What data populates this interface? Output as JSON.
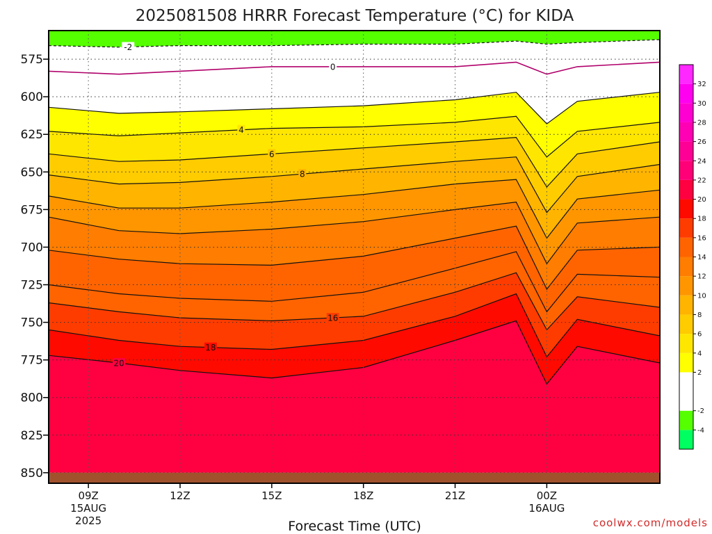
{
  "chart_data": {
    "type": "heatmap",
    "title": "2025081508 HRRR Forecast Temperature (°C) for KIDA",
    "xlabel": "Forecast Time (UTC)",
    "ylabel": "",
    "credit": "coolwx.com/models",
    "x_domain_hours": [
      7.7,
      27.7
    ],
    "y_domain_hpa": [
      556,
      857
    ],
    "y_scale": "linear, pressure increasing downward",
    "y_ticks": [
      575,
      600,
      625,
      650,
      675,
      700,
      725,
      750,
      775,
      800,
      825,
      850
    ],
    "x_ticks": [
      {
        "hour": 9,
        "label": "09Z",
        "sub1": "15AUG",
        "sub2": "2025"
      },
      {
        "hour": 12,
        "label": "12Z",
        "sub1": "",
        "sub2": ""
      },
      {
        "hour": 15,
        "label": "15Z",
        "sub1": "",
        "sub2": ""
      },
      {
        "hour": 18,
        "label": "18Z",
        "sub1": "",
        "sub2": ""
      },
      {
        "hour": 21,
        "label": "21Z",
        "sub1": "",
        "sub2": ""
      },
      {
        "hour": 24,
        "label": "00Z",
        "sub1": "16AUG",
        "sub2": ""
      }
    ],
    "grid": true,
    "ground_surface_hpa": 850,
    "isotherm_hours": [
      7.7,
      10,
      12,
      15,
      18,
      21,
      23,
      24,
      25,
      27.7
    ],
    "isotherms": [
      {
        "t": -2,
        "p": [
          566,
          567,
          566,
          566,
          565,
          565,
          563,
          565,
          564,
          562
        ],
        "label": "-2",
        "label_hour": 10.3
      },
      {
        "t": 0,
        "p": [
          583,
          585,
          583,
          580,
          580,
          580,
          577,
          585,
          580,
          577
        ],
        "label": "0",
        "label_hour": 17.0
      },
      {
        "t": 2,
        "p": [
          607,
          611,
          610,
          608,
          606,
          602,
          597,
          618,
          603,
          597
        ],
        "label": "",
        "label_hour": 0
      },
      {
        "t": 4,
        "p": [
          623,
          626,
          624,
          621,
          620,
          617,
          613,
          640,
          623,
          617
        ],
        "label": "4",
        "label_hour": 14.0
      },
      {
        "t": 6,
        "p": [
          638,
          643,
          642,
          638,
          634,
          630,
          627,
          660,
          638,
          630
        ],
        "label": "6",
        "label_hour": 15.0
      },
      {
        "t": 8,
        "p": [
          652,
          658,
          657,
          653,
          648,
          643,
          640,
          677,
          653,
          645
        ],
        "label": "8",
        "label_hour": 16.0
      },
      {
        "t": 10,
        "p": [
          666,
          674,
          674,
          670,
          665,
          658,
          655,
          694,
          668,
          662
        ],
        "label": "",
        "label_hour": 0
      },
      {
        "t": 12,
        "p": [
          680,
          689,
          691,
          688,
          683,
          675,
          670,
          711,
          684,
          680
        ],
        "label": "",
        "label_hour": 0
      },
      {
        "t": 14,
        "p": [
          702,
          708,
          711,
          712,
          706,
          694,
          686,
          728,
          702,
          700
        ],
        "label": "",
        "label_hour": 0
      },
      {
        "t": 15,
        "p": [
          725,
          731,
          734,
          736,
          730,
          714,
          703,
          743,
          718,
          720
        ],
        "label": "",
        "label_hour": 0
      },
      {
        "t": 16,
        "p": [
          737,
          743,
          747,
          749,
          746,
          730,
          717,
          755,
          733,
          740
        ],
        "label": "16",
        "label_hour": 17.0
      },
      {
        "t": 18,
        "p": [
          755,
          762,
          766,
          768,
          762,
          746,
          731,
          773,
          748,
          759
        ],
        "label": "18",
        "label_hour": 13.0
      },
      {
        "t": 20,
        "p": [
          772,
          777,
          782,
          787,
          780,
          762,
          749,
          791,
          766,
          777
        ],
        "label": "20",
        "label_hour": 10.0
      }
    ],
    "colorbar": {
      "levels": [
        -6,
        -4,
        -2,
        0,
        2,
        4,
        6,
        8,
        10,
        12,
        14,
        16,
        18,
        20,
        22,
        24,
        26,
        28,
        30,
        32,
        34
      ],
      "tick_labels": [
        "-4",
        "-2",
        "2",
        "4",
        "6",
        "8",
        "10",
        "12",
        "14",
        "16",
        "18",
        "20",
        "22",
        "24",
        "26",
        "28",
        "30",
        "32"
      ],
      "tick_values": [
        -4,
        -2,
        2,
        4,
        6,
        8,
        10,
        12,
        14,
        16,
        18,
        20,
        22,
        24,
        26,
        28,
        30,
        32
      ],
      "colors": [
        "#00ff60",
        "#55ff00",
        "#ffffff",
        "#ffffff",
        "#ffff00",
        "#ffe600",
        "#ffcc00",
        "#ffb400",
        "#ff9600",
        "#ff7d00",
        "#ff6400",
        "#ff3c00",
        "#ff0a00",
        "#ff0040",
        "#ff0078",
        "#ff0096",
        "#ff00b4",
        "#ff00d2",
        "#ff00f0",
        "#ff28ff"
      ]
    },
    "ground_color": "#a0522d"
  }
}
